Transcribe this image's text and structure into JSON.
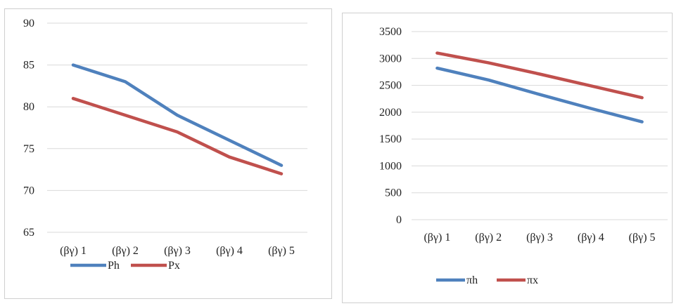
{
  "chart_data": [
    {
      "type": "line",
      "categories": [
        "(βγ) 1",
        "(βγ) 2",
        "(βγ) 3",
        "(βγ) 4",
        "(βγ) 5"
      ],
      "ylim": [
        65,
        90
      ],
      "yticks": [
        65,
        70,
        75,
        80,
        85,
        90
      ],
      "grid": true,
      "legend": "bottom",
      "series": [
        {
          "name": "Ph",
          "color": "#4F81BD",
          "values": [
            85,
            83,
            79,
            76,
            73
          ]
        },
        {
          "name": "Px",
          "color": "#C0504D",
          "values": [
            81,
            79,
            77,
            74,
            72
          ]
        }
      ]
    },
    {
      "type": "line",
      "categories": [
        "(βγ) 1",
        "(βγ) 2",
        "(βγ) 3",
        "(βγ) 4",
        "(βγ) 5"
      ],
      "ylim": [
        0,
        3500
      ],
      "yticks": [
        0,
        500,
        1000,
        1500,
        2000,
        2500,
        3000,
        3500
      ],
      "grid": true,
      "legend": "bottom",
      "series": [
        {
          "name": "πh",
          "color": "#4F81BD",
          "values": [
            2820,
            2600,
            2330,
            2070,
            1820
          ]
        },
        {
          "name": "πx",
          "color": "#C0504D",
          "values": [
            3100,
            2920,
            2710,
            2490,
            2270
          ]
        }
      ]
    }
  ]
}
